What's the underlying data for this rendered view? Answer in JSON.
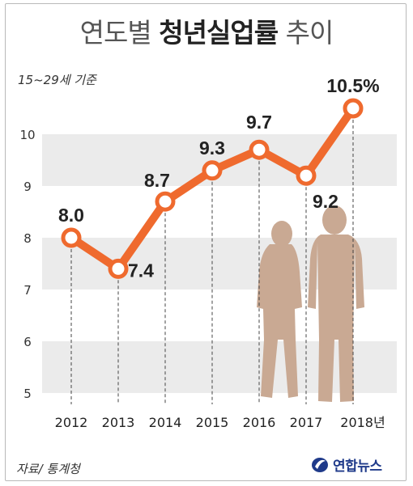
{
  "header": {
    "title_part1": "연도별",
    "title_bold": "청년실업률",
    "title_part2": "추이",
    "note": "15~29세 기준"
  },
  "footer": {
    "source": "자료/ 통계청",
    "logo_text": "연합뉴스"
  },
  "colors": {
    "line": "#ef6a2e",
    "band": "#ebebeb",
    "silhouette": "#c9a993"
  },
  "chart_data": {
    "type": "line",
    "title": "연도별 청년실업률 추이",
    "subtitle": "15~29세 기준",
    "categories": [
      "2012",
      "2013",
      "2014",
      "2015",
      "2016",
      "2017",
      "2018년"
    ],
    "values": [
      8.0,
      7.4,
      8.7,
      9.3,
      9.7,
      9.2,
      10.5
    ],
    "value_labels": [
      "8.0",
      "7.4",
      "8.7",
      "9.3",
      "9.7",
      "9.2",
      "10.5%"
    ],
    "y_ticks": [
      "5",
      "6",
      "7",
      "8",
      "9",
      "10"
    ],
    "ylim": [
      5,
      10.5
    ],
    "grid": "alternating bands",
    "source": "자료/ 통계청"
  }
}
